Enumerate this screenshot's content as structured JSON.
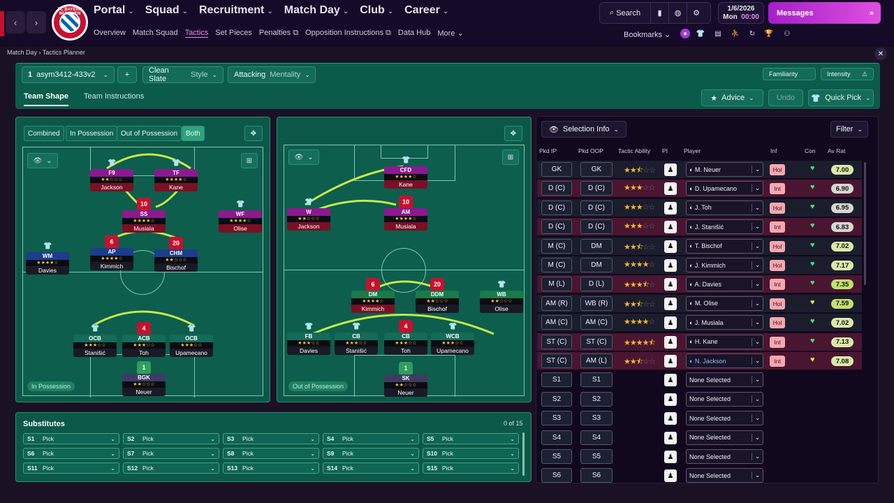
{
  "topbar": {
    "club_crest_text": "FC BAYERN MÜNCHEN",
    "nav": [
      "Portal",
      "Squad",
      "Recruitment",
      "Match Day",
      "Club",
      "Career"
    ],
    "active_nav": "Match Day",
    "subnav": [
      "Overview",
      "Match Squad",
      "Tactics",
      "Set Pieces",
      "Penalties",
      "Opposition Instructions",
      "Data Hub",
      "More"
    ],
    "active_subnav": "Tactics",
    "search_label": "Search",
    "date": "1/6/2026",
    "day": "Mon",
    "time": "00:00",
    "messages_label": "Messages",
    "bookmarks_label": "Bookmarks"
  },
  "breadcrumb": {
    "root": "Match Day",
    "current": "Tactics Planner"
  },
  "toolbar": {
    "tactic_num": "1",
    "tactic_name": "asym3412-433v2",
    "style_value": "Clean Slate",
    "style_label": "Style",
    "mentality_value": "Attacking",
    "mentality_label": "Mentality",
    "familiarity_label": "Familiarity",
    "intensity_label": "Intensity",
    "tabs": [
      "Team Shape",
      "Team Instructions"
    ],
    "advice_label": "Advice",
    "undo_label": "Undo",
    "quickpick_label": "Quick Pick"
  },
  "view_filters": [
    "Combined",
    "In Possession",
    "Out of Possession",
    "Both"
  ],
  "in_possession": {
    "zone_label": "In Possession",
    "players": [
      {
        "pos": "F9",
        "num": "",
        "name": "Jackson",
        "stars": "★★☆☆☆"
      },
      {
        "pos": "TF",
        "num": "",
        "name": "Kane",
        "stars": "★★★★☆"
      },
      {
        "pos": "SS",
        "num": "10",
        "name": "Musiala",
        "stars": "★★★★☆"
      },
      {
        "pos": "WF",
        "num": "",
        "name": "Olise",
        "stars": "★★★★☆"
      },
      {
        "pos": "AP",
        "num": "6",
        "name": "Kimmich",
        "stars": "★★★★☆"
      },
      {
        "pos": "CHM",
        "num": "20",
        "name": "Bischof",
        "stars": "★★☆☆☆"
      },
      {
        "pos": "WM",
        "num": "",
        "name": "Davies",
        "stars": "★★★★☆"
      },
      {
        "pos": "OCB",
        "num": "",
        "name": "Stanišić",
        "stars": "★★★☆☆"
      },
      {
        "pos": "ACB",
        "num": "4",
        "name": "Toh",
        "stars": "★★★☆☆"
      },
      {
        "pos": "OCB",
        "num": "",
        "name": "Upamecano",
        "stars": "★★★☆☆"
      },
      {
        "pos": "BGK",
        "num": "1",
        "name": "Neuer",
        "stars": "★★☆☆☆"
      }
    ]
  },
  "out_of_possession": {
    "zone_label": "Out of Possession",
    "players": [
      {
        "pos": "CFD",
        "num": "",
        "name": "Kane",
        "stars": "★★★★☆"
      },
      {
        "pos": "W",
        "num": "",
        "name": "Jackson",
        "stars": "★★☆☆☆"
      },
      {
        "pos": "AM",
        "num": "10",
        "name": "Musiala",
        "stars": "★★★★☆"
      },
      {
        "pos": "DM",
        "num": "6",
        "name": "Kimmich",
        "stars": "★★★★☆"
      },
      {
        "pos": "DDM",
        "num": "20",
        "name": "Bischof",
        "stars": "★★☆☆☆"
      },
      {
        "pos": "WB",
        "num": "",
        "name": "Olise",
        "stars": "★★☆☆☆"
      },
      {
        "pos": "FB",
        "num": "",
        "name": "Davies",
        "stars": "★★★☆☆"
      },
      {
        "pos": "CB",
        "num": "",
        "name": "Stanišić",
        "stars": "★★★☆☆"
      },
      {
        "pos": "CB",
        "num": "4",
        "name": "Toh",
        "stars": "★★★☆☆"
      },
      {
        "pos": "WCB",
        "num": "",
        "name": "Upamecano",
        "stars": "★★★☆☆"
      },
      {
        "pos": "SK",
        "num": "1",
        "name": "Neuer",
        "stars": "★★☆☆☆"
      }
    ]
  },
  "substitutes": {
    "title": "Substitutes",
    "count": "0 of 15",
    "slots": [
      {
        "slot": "S1",
        "value": "Pick"
      },
      {
        "slot": "S2",
        "value": "Pick"
      },
      {
        "slot": "S3",
        "value": "Pick"
      },
      {
        "slot": "S4",
        "value": "Pick"
      },
      {
        "slot": "S5",
        "value": "Pick"
      },
      {
        "slot": "S6",
        "value": "Pick"
      },
      {
        "slot": "S7",
        "value": "Pick"
      },
      {
        "slot": "S8",
        "value": "Pick"
      },
      {
        "slot": "S9",
        "value": "Pick"
      },
      {
        "slot": "S10",
        "value": "Pick"
      },
      {
        "slot": "S11",
        "value": "Pick"
      },
      {
        "slot": "S12",
        "value": "Pick"
      },
      {
        "slot": "S13",
        "value": "Pick"
      },
      {
        "slot": "S14",
        "value": "Pick"
      },
      {
        "slot": "S15",
        "value": "Pick"
      }
    ]
  },
  "selection": {
    "info_label": "Selection Info",
    "filter_label": "Filter",
    "columns": [
      "Pkd IP",
      "Pkd OOP",
      "Tactic Ability",
      "PI",
      "Player",
      "Inf",
      "Con",
      "Av Rat"
    ],
    "rows": [
      {
        "ip": "GK",
        "oop": "GK",
        "stars": 2.5,
        "player": "M. Neuer",
        "inf": "Hol",
        "rat": "7.00",
        "hl": false
      },
      {
        "ip": "D (C)",
        "oop": "D (C)",
        "stars": 3,
        "player": "D. Upamecano",
        "inf": "Int",
        "rat": "6.90",
        "hl": true
      },
      {
        "ip": "D (C)",
        "oop": "D (C)",
        "stars": 3,
        "player": "J. Toh",
        "inf": "Hol",
        "rat": "6.95",
        "hl": false
      },
      {
        "ip": "D (C)",
        "oop": "D (C)",
        "stars": 3,
        "player": "J. Stanišić",
        "inf": "Int",
        "rat": "6.83",
        "hl": true
      },
      {
        "ip": "M (C)",
        "oop": "DM",
        "stars": 2.5,
        "player": "T. Bischof",
        "inf": "Hol",
        "rat": "7.02",
        "hl": false
      },
      {
        "ip": "M (C)",
        "oop": "DM",
        "stars": 4,
        "player": "J. Kimmich",
        "inf": "Hol",
        "rat": "7.17",
        "hl": false
      },
      {
        "ip": "M (L)",
        "oop": "D (L)",
        "stars": 3.5,
        "player": "A. Davies",
        "inf": "Int",
        "rat": "7.35",
        "hl": true
      },
      {
        "ip": "AM (R)",
        "oop": "WB (R)",
        "stars": 2.5,
        "player": "M. Olise",
        "inf": "Hol",
        "rat": "7.59",
        "hl": false
      },
      {
        "ip": "AM (C)",
        "oop": "AM (C)",
        "stars": 4,
        "player": "J. Musiala",
        "inf": "Hol",
        "rat": "7.02",
        "hl": false
      },
      {
        "ip": "ST (C)",
        "oop": "ST (C)",
        "stars": 4.5,
        "player": "H. Kane",
        "inf": "Int",
        "rat": "7.13",
        "hl": true
      },
      {
        "ip": "ST (C)",
        "oop": "AM (L)",
        "stars": 2.5,
        "player": "N. Jackson",
        "inf": "Int",
        "rat": "7.08",
        "hl": true
      },
      {
        "ip": "S1",
        "oop": "S1",
        "stars": 0,
        "player": "None Selected",
        "inf": "",
        "rat": "",
        "hl": false
      },
      {
        "ip": "S2",
        "oop": "S2",
        "stars": 0,
        "player": "None Selected",
        "inf": "",
        "rat": "",
        "hl": false
      },
      {
        "ip": "S3",
        "oop": "S3",
        "stars": 0,
        "player": "None Selected",
        "inf": "",
        "rat": "",
        "hl": false
      },
      {
        "ip": "S4",
        "oop": "S4",
        "stars": 0,
        "player": "None Selected",
        "inf": "",
        "rat": "",
        "hl": false
      },
      {
        "ip": "S5",
        "oop": "S5",
        "stars": 0,
        "player": "None Selected",
        "inf": "",
        "rat": "",
        "hl": false
      },
      {
        "ip": "S6",
        "oop": "S6",
        "stars": 0,
        "player": "None Selected",
        "inf": "",
        "rat": "",
        "hl": false
      }
    ]
  },
  "colors": {
    "accent": "#e78af7",
    "pitch": "#0d5e4c",
    "attack": "#8a1a8e",
    "mid": "#1e3c8c",
    "def": "#136b58",
    "rating": "#c9e6a0"
  }
}
